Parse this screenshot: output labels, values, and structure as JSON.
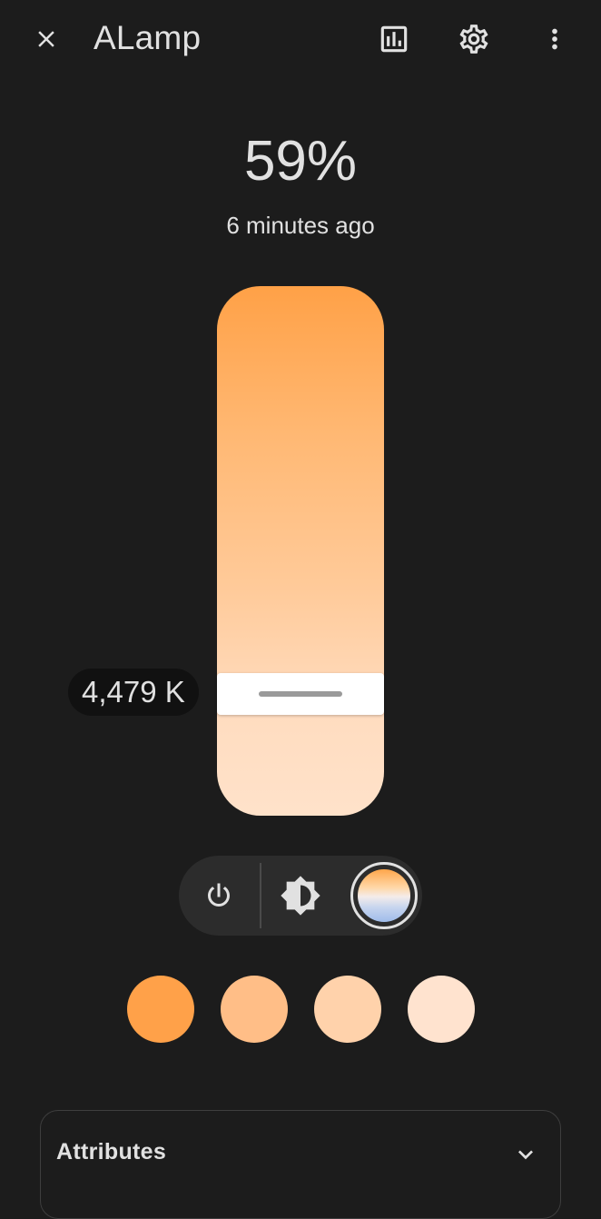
{
  "header": {
    "title": "ALamp",
    "icons": {
      "close": "close-icon",
      "history": "chart-box-icon",
      "settings": "gear-icon",
      "more": "dots-vertical-icon"
    }
  },
  "state": {
    "value": "59%",
    "last_changed": "6 minutes ago"
  },
  "color_temp_slider": {
    "tooltip": "4,479 K",
    "position_fraction": 0.23,
    "colors": [
      "#ffa147",
      "#ffe2ca"
    ]
  },
  "mode_bar": {
    "buttons": [
      {
        "name": "power",
        "icon": "power-icon",
        "active": false
      },
      {
        "name": "brightness",
        "icon": "brightness-icon",
        "active": false
      },
      {
        "name": "color-temperature",
        "icon": "color-temperature-icon",
        "active": true
      }
    ]
  },
  "favorites": {
    "colors": [
      "#ffa149",
      "#ffbe87",
      "#ffd2ab",
      "#ffe3cf"
    ]
  },
  "attributes": {
    "label": "Attributes",
    "icon": "chevron-down-icon"
  },
  "theme": {
    "background": "#1c1c1c",
    "text": "#e1e1e1"
  }
}
